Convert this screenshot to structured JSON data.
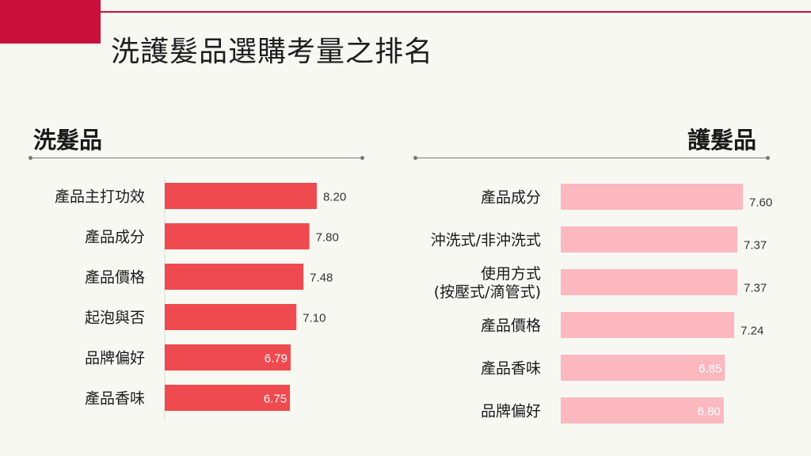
{
  "page": {
    "title": "洗護髮品選購考量之排名",
    "accent_color": "#c8103a"
  },
  "chart_data": [
    {
      "type": "bar",
      "orientation": "horizontal",
      "title": "洗髮品",
      "categories": [
        "產品主打功效",
        "產品成分",
        "產品價格",
        "起泡與否",
        "品牌偏好",
        "產品香味"
      ],
      "values": [
        8.2,
        7.8,
        7.48,
        7.1,
        6.79,
        6.75
      ],
      "value_labels": [
        "8.20",
        "7.80",
        "7.48",
        "7.10",
        "6.79",
        "6.75"
      ],
      "xlim": [
        0,
        8.2
      ],
      "bar_color": "#ef4a4f",
      "grid": false
    },
    {
      "type": "bar",
      "orientation": "horizontal",
      "title": "護髮品",
      "categories": [
        "產品成分",
        "沖洗式/非沖洗式",
        "使用方式\n(按壓式/滴管式)",
        "產品價格",
        "產品香味",
        "品牌偏好"
      ],
      "values": [
        7.6,
        7.37,
        7.37,
        7.24,
        6.85,
        6.8
      ],
      "value_labels": [
        "7.60",
        "7.37",
        "7.37",
        "7.24",
        "6.85",
        "6.80"
      ],
      "xlim": [
        0,
        7.6
      ],
      "bar_color": "#fbb8bf",
      "grid": false
    }
  ]
}
